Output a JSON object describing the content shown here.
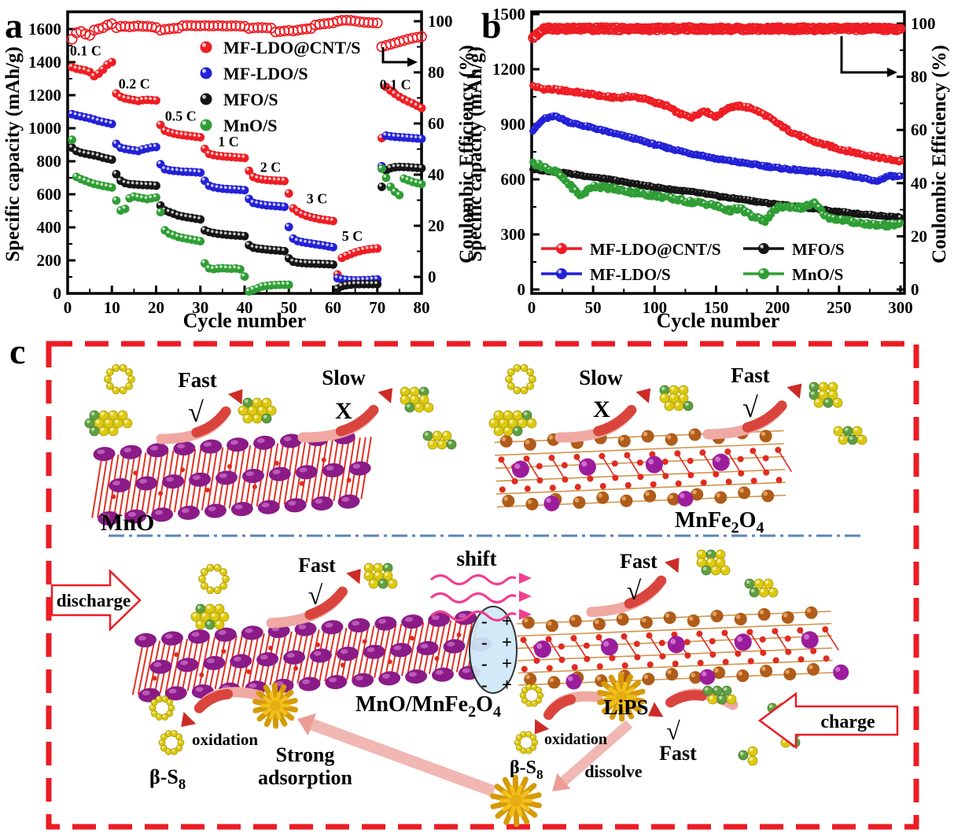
{
  "figure": {
    "panel_a_label": "a",
    "panel_b_label": "b",
    "panel_c_label": "c"
  },
  "chart_data": [
    {
      "id": "a",
      "type": "scatter",
      "xlabel": "Cycle number",
      "ylabel_left": "Specific capacity (mAh/g)",
      "ylabel_right": "Coulombic Efficiency (%)",
      "xlim": [
        0,
        80
      ],
      "xticks": [
        0,
        10,
        20,
        30,
        40,
        50,
        60,
        70,
        80
      ],
      "xminor_step": 5,
      "ylim_left": [
        0,
        1700
      ],
      "yticks_left": [
        0,
        200,
        400,
        600,
        800,
        1000,
        1200,
        1400,
        1600
      ],
      "yminor_left_step": 100,
      "ylim_right": [
        0,
        106
      ],
      "yticks_right": [
        0,
        20,
        40,
        60,
        80,
        100
      ],
      "yminor_right_step": 10,
      "legend_position": "upper-center",
      "grid": false,
      "rate_labels": [
        {
          "text": "0.1 C",
          "x": 0.5,
          "y": 1440
        },
        {
          "text": "0.2 C",
          "x": 11.5,
          "y": 1240
        },
        {
          "text": "0.5 C",
          "x": 22,
          "y": 1045
        },
        {
          "text": "1 C",
          "x": 34,
          "y": 890
        },
        {
          "text": "2 C",
          "x": 43.5,
          "y": 735
        },
        {
          "text": "3 C",
          "x": 54,
          "y": 545
        },
        {
          "text": "5 C",
          "x": 62,
          "y": 318
        },
        {
          "text": "0.1 C",
          "x": 70.5,
          "y": 1235
        }
      ],
      "series": [
        {
          "name": "MF-LDO@CNT/S",
          "color": "#ee1d23",
          "values": [
            1370,
            1360,
            1355,
            1350,
            1340,
            1315,
            1330,
            1355,
            1385,
            1400,
            1210,
            1190,
            1180,
            1175,
            1170,
            1165,
            1170,
            1172,
            1170,
            1168,
            1020,
            985,
            975,
            968,
            962,
            958,
            955,
            952,
            948,
            945,
            875,
            845,
            838,
            833,
            830,
            828,
            826,
            824,
            822,
            820,
            742,
            705,
            695,
            690,
            687,
            685,
            683,
            682,
            680,
            605,
            515,
            495,
            480,
            470,
            462,
            456,
            450,
            446,
            442,
            438,
            115,
            215,
            228,
            238,
            248,
            256,
            262,
            267,
            270,
            272,
            940,
            1250,
            1228,
            1208,
            1190,
            1175,
            1162,
            1150,
            1136,
            1122
          ]
        },
        {
          "name": "MF-LDO/S",
          "color": "#2321d6",
          "values": [
            1085,
            1078,
            1072,
            1066,
            1060,
            1052,
            1044,
            1038,
            1032,
            1026,
            905,
            882,
            875,
            870,
            866,
            862,
            872,
            878,
            884,
            886,
            782,
            752,
            746,
            742,
            740,
            737,
            736,
            735,
            733,
            731,
            682,
            652,
            643,
            638,
            634,
            632,
            630,
            629,
            627,
            625,
            572,
            548,
            542,
            537,
            533,
            531,
            529,
            527,
            524,
            402,
            332,
            317,
            311,
            306,
            302,
            298,
            294,
            290,
            285,
            280,
            92,
            86,
            82,
            80,
            79,
            79,
            80,
            81,
            83,
            85,
            770,
            955,
            951,
            948,
            946,
            944,
            942,
            940,
            938,
            936
          ]
        },
        {
          "name": "MFO/S",
          "color": "#151515",
          "values": [
            882,
            862,
            852,
            846,
            841,
            836,
            830,
            822,
            816,
            810,
            722,
            682,
            668,
            662,
            660,
            658,
            656,
            655,
            654,
            652,
            532,
            502,
            492,
            482,
            472,
            466,
            461,
            457,
            452,
            448,
            382,
            372,
            366,
            361,
            358,
            355,
            353,
            351,
            349,
            347,
            292,
            277,
            272,
            269,
            266,
            263,
            261,
            259,
            256,
            212,
            192,
            187,
            184,
            182,
            181,
            180,
            179,
            178,
            177,
            175,
            28,
            44,
            50,
            53,
            55,
            56,
            56,
            56,
            56,
            56,
            645,
            745,
            758,
            764,
            766,
            765,
            764,
            762,
            760,
            758
          ]
        },
        {
          "name": "MnO/S",
          "color": "#2f9e35",
          "values": [
            930,
            705,
            692,
            682,
            672,
            663,
            657,
            651,
            646,
            641,
            562,
            502,
            512,
            576,
            586,
            581,
            576,
            571,
            576,
            581,
            492,
            382,
            362,
            352,
            342,
            336,
            331,
            326,
            321,
            316,
            182,
            152,
            147,
            151,
            153,
            151,
            149,
            151,
            146,
            102,
            12,
            22,
            32,
            42,
            46,
            49,
            51,
            52,
            52,
            52,
            null,
            null,
            null,
            null,
            null,
            null,
            null,
            null,
            null,
            null,
            null,
            null,
            null,
            null,
            null,
            null,
            null,
            null,
            null,
            null,
            755,
            700,
            645,
            615,
            595,
            695,
            685,
            675,
            668,
            662
          ]
        }
      ],
      "efficiency": {
        "name": "Coulombic efficiency",
        "color": "#ee1d23",
        "values": [
          93,
          95.5,
          96,
          95,
          94.5,
          96.5,
          97,
          97.5,
          98.5,
          99,
          97.5,
          98,
          98,
          97.8,
          98,
          98.2,
          98,
          98,
          97.8,
          97.5,
          96.5,
          96.8,
          97,
          97.2,
          97.3,
          98.2,
          98.3,
          98.3,
          98.2,
          98.2,
          98.3,
          98.2,
          98.2,
          98.3,
          98.2,
          98.1,
          98.2,
          98.2,
          98.1,
          98,
          97.2,
          97.4,
          97.5,
          97.5,
          97.4,
          97.3,
          95.8,
          96,
          96.2,
          96.4,
          96.2,
          96.5,
          96.8,
          97,
          97.2,
          98.5,
          98.8,
          99,
          99.2,
          99.4,
          100,
          100.3,
          100.4,
          100.3,
          100.1,
          99.8,
          99.6,
          99.5,
          99.4,
          99.3,
          90,
          90.5,
          91,
          91.5,
          92,
          92.5,
          93,
          93.4,
          93.7,
          94
        ]
      }
    },
    {
      "id": "b",
      "type": "scatter",
      "xlabel": "Cycle number",
      "ylabel_left": "Specific capacity (mAh/g)",
      "ylabel_right": "Coulombic Efficiency (%)",
      "xlim": [
        0,
        300
      ],
      "xticks": [
        0,
        50,
        100,
        150,
        200,
        250,
        300
      ],
      "xminor_step": 25,
      "ylim_left": [
        0,
        1520
      ],
      "yticks_left": [
        0,
        300,
        600,
        900,
        1200,
        1500
      ],
      "yminor_left_step": 150,
      "ylim_right": [
        0,
        105
      ],
      "yticks_right": [
        0,
        20,
        40,
        60,
        80,
        100
      ],
      "yminor_right_step": 10,
      "legend_position": "lower-left",
      "grid": false,
      "x_anchor_step": 10,
      "series": [
        {
          "name": "MF-LDO@CNT/S",
          "color": "#ee1d23",
          "anchors": [
            1110,
            1092,
            1088,
            1080,
            1072,
            1062,
            1050,
            1045,
            1052,
            1042,
            1020,
            1000,
            958,
            938,
            975,
            940,
            992,
            1000,
            985,
            950,
            905,
            862,
            832,
            805,
            786,
            766,
            750,
            736,
            722,
            710,
            698
          ]
        },
        {
          "name": "MF-LDO/S",
          "color": "#2321d6",
          "anchors": [
            860,
            930,
            945,
            912,
            895,
            880,
            862,
            845,
            828,
            810,
            790,
            772,
            756,
            740,
            728,
            712,
            702,
            692,
            682,
            672,
            662,
            655,
            648,
            642,
            636,
            630,
            620,
            605,
            588,
            618,
            615
          ]
        },
        {
          "name": "MFO/S",
          "color": "#151515",
          "anchors": [
            655,
            648,
            640,
            632,
            622,
            612,
            602,
            592,
            580,
            568,
            558,
            548,
            540,
            532,
            522,
            510,
            500,
            492,
            482,
            472,
            464,
            456,
            448,
            440,
            432,
            424,
            416,
            410,
            404,
            398,
            394
          ]
        },
        {
          "name": "MnO/S",
          "color": "#2f9e35",
          "anchors": [
            690,
            668,
            640,
            575,
            510,
            565,
            556,
            545,
            532,
            522,
            512,
            500,
            488,
            476,
            470,
            455,
            430,
            440,
            395,
            375,
            448,
            452,
            445,
            470,
            395,
            382,
            370,
            360,
            352,
            350,
            358
          ]
        }
      ],
      "efficiency": {
        "name": "Coulombic efficiency",
        "color": "#ee1d23",
        "anchors": [
          94.5,
          98,
          98.2,
          98,
          98.1,
          98,
          98.2,
          98,
          98.1,
          98,
          98,
          98.1,
          98,
          98.2,
          98,
          98.1,
          98,
          98,
          98.1,
          98,
          98.2,
          98,
          98.1,
          98,
          98,
          98.1,
          98,
          98.1,
          98,
          98,
          98
        ]
      }
    }
  ],
  "panel_c": {
    "labels": {
      "mno": "MnO",
      "mnfe2o4": "MnFe_2O_4",
      "mno_mnfe2o4": "MnO/MnFe_2O_4",
      "fast": "Fast",
      "slow": "Slow",
      "check": "√",
      "cross": "X",
      "discharge": "discharge",
      "charge": "charge",
      "shift": "shift",
      "oxidation": "oxidation",
      "beta_s8": "β-S_8",
      "strong_line1": "Strong",
      "strong_line2": "adsorption",
      "dissolve": "dissolve",
      "lips": "LiPS",
      "minus": "-",
      "plus": "+"
    },
    "colors": {
      "fast_green": "#00a04e",
      "slow_red": "#ed1c24",
      "charge_blue": "#1414cc",
      "border_red": "#ec1c24",
      "divider_blue": "#5b84b8",
      "sulfur_yellow": "#ddc90f",
      "lithium_green": "#5f9e42",
      "mn_purple": "#8a1b87",
      "fe_brown": "#b05c1a",
      "oxygen_red": "#e02b20",
      "gold": "#d69a08",
      "interface_blue": "#cfe9f8",
      "wave_pink": "#ef3f90",
      "arrow_body": "#f0a8a2",
      "arrow_head": "#cc2b26"
    }
  }
}
